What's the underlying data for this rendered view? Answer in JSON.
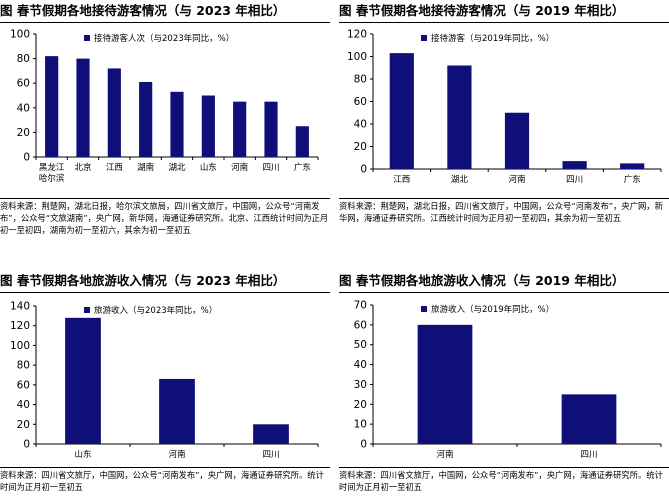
{
  "panels": [
    {
      "title": "图 春节假期各地接待游客情况（与 2023 年相比）",
      "source": "资料来源：荆楚网，湖北日报，哈尔滨文旅局，四川省文旅厅，中国网，公众号“河南发布”，公众号“文旅湖南”，央广网，新华网，海通证券研究所。北京、江西统计时间为正月初一至初四，湖南为初一至初六，其余为初一至初五",
      "chart_data": {
        "type": "bar",
        "categories": [
          [
            "黑龙江",
            "哈尔滨"
          ],
          [
            "北京"
          ],
          [
            "江西"
          ],
          [
            "湖南"
          ],
          [
            "湖北"
          ],
          [
            "山东"
          ],
          [
            "河南"
          ],
          [
            "四川"
          ],
          [
            "广东"
          ]
        ],
        "series": [
          {
            "name": "接待游客人次（与2023年同比，%）",
            "values": [
              82,
              80,
              72,
              61,
              53,
              50,
              45,
              45,
              25
            ]
          }
        ],
        "ylim": [
          0,
          100
        ],
        "yticks": [
          0,
          20,
          40,
          60,
          80,
          100
        ],
        "legend": "top-left",
        "bar_color": "#0f0f7a"
      }
    },
    {
      "title": "图 春节假期各地接待游客情况（与 2019 年相比）",
      "source": "资料来源：荆楚网，湖北日报，四川省文旅厅，中国网，公众号“河南发布”，央广网，新华网，海通证券研究所。江西统计时间为正月初一至初四，其余为初一至初五",
      "chart_data": {
        "type": "bar",
        "categories": [
          [
            "江西"
          ],
          [
            "湖北"
          ],
          [
            "河南"
          ],
          [
            "四川"
          ],
          [
            "广东"
          ]
        ],
        "series": [
          {
            "name": "接待游客（与2019年同比，%）",
            "values": [
              103,
              92,
              50,
              7,
              5
            ]
          }
        ],
        "ylim": [
          0,
          120
        ],
        "yticks": [
          0,
          20,
          40,
          60,
          80,
          100,
          120
        ],
        "legend": "top-left",
        "bar_color": "#0f0f7a"
      }
    },
    {
      "title": "图 春节假期各地旅游收入情况（与 2023 年相比）",
      "source": "资料来源：四川省文旅厅，中国网，公众号“河南发布”，央广网，海通证券研究所。统计时间为正月初一至初五",
      "chart_data": {
        "type": "bar",
        "categories": [
          [
            "山东"
          ],
          [
            "河南"
          ],
          [
            "四川"
          ]
        ],
        "series": [
          {
            "name": "旅游收入（与2023年同比，%）",
            "values": [
              128,
              66,
              20
            ]
          }
        ],
        "ylim": [
          0,
          140
        ],
        "yticks": [
          0,
          20,
          40,
          60,
          80,
          100,
          120,
          140
        ],
        "legend": "top-left",
        "bar_color": "#0f0f7a"
      }
    },
    {
      "title": "图 春节假期各地旅游收入情况（与 2019 年相比）",
      "source": "资料来源：四川省文旅厅，中国网，公众号“河南发布”，央广网，海通证券研究所。统计时间为正月初一至初五",
      "chart_data": {
        "type": "bar",
        "categories": [
          [
            "河南"
          ],
          [
            "四川"
          ]
        ],
        "series": [
          {
            "name": "旅游收入（与2019年同比，%）",
            "values": [
              60,
              25
            ]
          }
        ],
        "ylim": [
          0,
          70
        ],
        "yticks": [
          0,
          10,
          20,
          30,
          40,
          50,
          60,
          70
        ],
        "legend": "top-left",
        "bar_color": "#0f0f7a"
      }
    }
  ]
}
